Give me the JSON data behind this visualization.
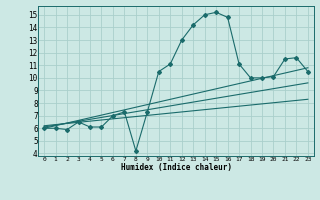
{
  "bg_color": "#cce8e4",
  "grid_color": "#aacfcc",
  "line_color": "#1a6b6b",
  "xlabel": "Humidex (Indice chaleur)",
  "xlim": [
    -0.5,
    23.5
  ],
  "ylim": [
    3.8,
    15.7
  ],
  "xticks": [
    0,
    1,
    2,
    3,
    4,
    5,
    6,
    7,
    8,
    9,
    10,
    11,
    12,
    13,
    14,
    15,
    16,
    17,
    18,
    19,
    20,
    21,
    22,
    23
  ],
  "yticks": [
    4,
    5,
    6,
    7,
    8,
    9,
    10,
    11,
    12,
    13,
    14,
    15
  ],
  "main_x": [
    0,
    1,
    2,
    3,
    4,
    5,
    6,
    7,
    8,
    9,
    10,
    11,
    12,
    13,
    14,
    15,
    16,
    17,
    18,
    19,
    20,
    21,
    22,
    23
  ],
  "main_y": [
    6.0,
    6.0,
    5.9,
    6.5,
    6.1,
    6.1,
    7.0,
    7.3,
    4.2,
    7.3,
    10.5,
    11.1,
    13.0,
    14.2,
    15.0,
    15.2,
    14.8,
    11.1,
    10.0,
    10.0,
    10.1,
    11.5,
    11.6,
    10.5
  ],
  "trend1_x": [
    0,
    23
  ],
  "trend1_y": [
    6.0,
    10.8
  ],
  "trend2_x": [
    0,
    23
  ],
  "trend2_y": [
    6.1,
    9.6
  ],
  "trend3_x": [
    0,
    23
  ],
  "trend3_y": [
    6.2,
    8.3
  ],
  "xlabel_fontsize": 5.5,
  "tick_fontsize_x": 4.5,
  "tick_fontsize_y": 5.5
}
